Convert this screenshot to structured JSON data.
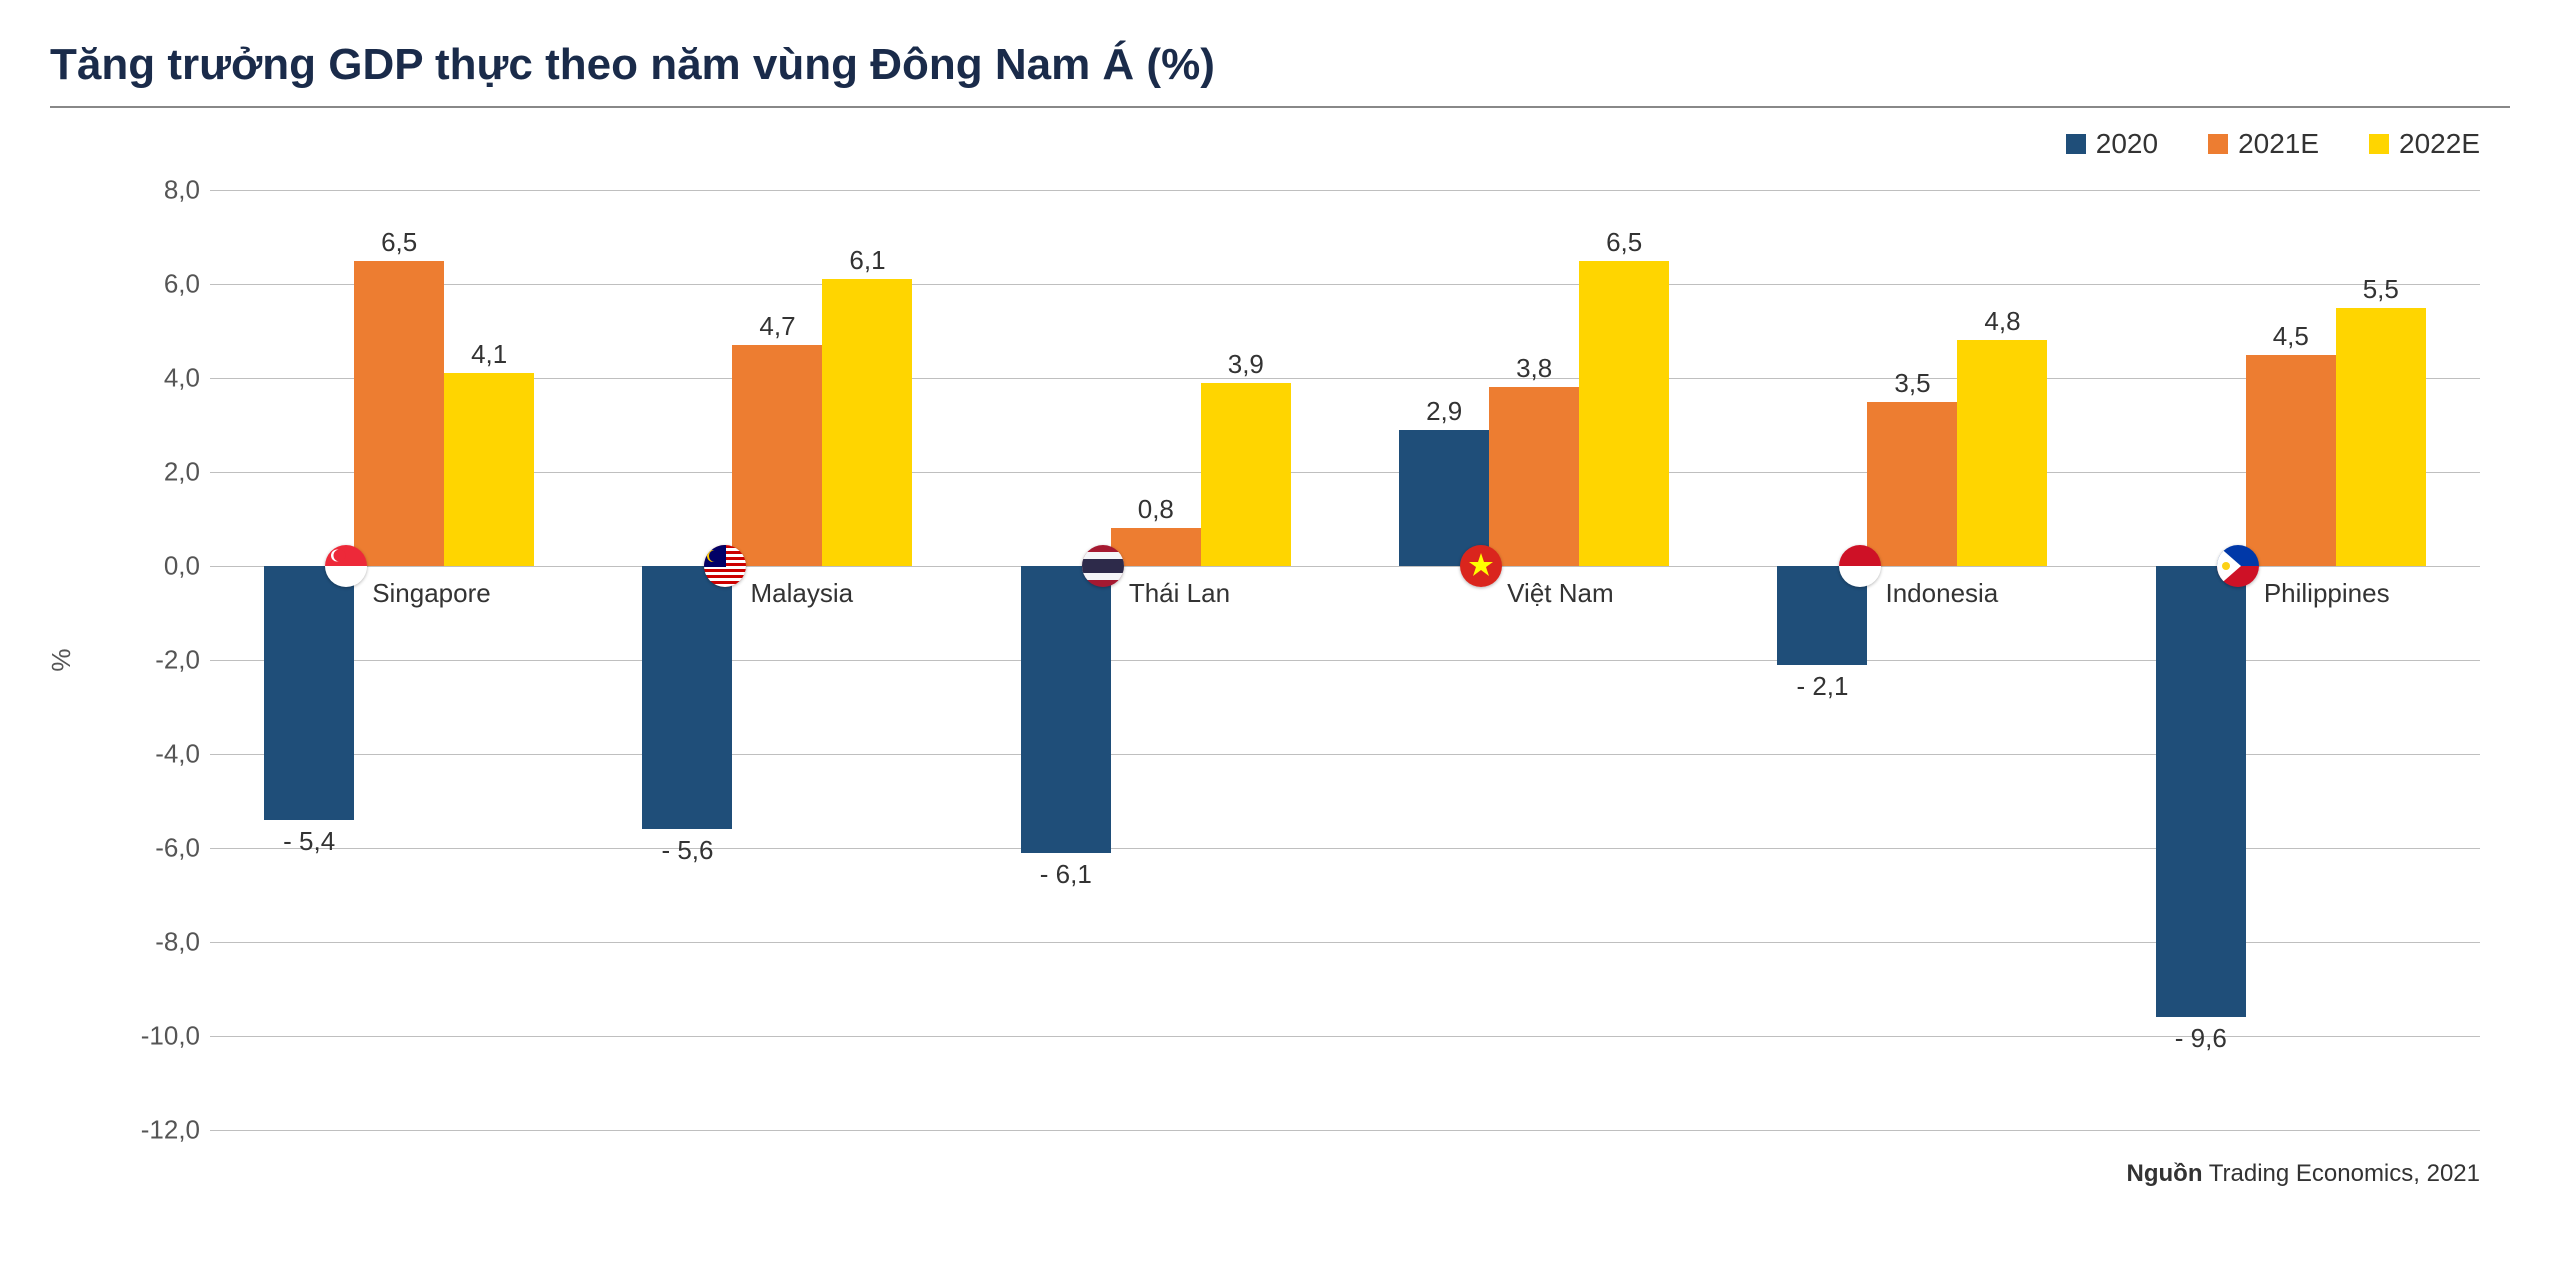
{
  "title": "Tăng trưởng GDP thực theo năm vùng Đông Nam Á (%)",
  "y_axis_label": "%",
  "source_label": "Nguồn",
  "source_text": " Trading Economics, 2021",
  "chart": {
    "type": "bar",
    "ylim": [
      -12,
      8
    ],
    "ytick_step": 2,
    "yticks": [
      "8,0",
      "6,0",
      "4,0",
      "2,0",
      "0,0",
      "-2,0",
      "-4,0",
      "-6,0",
      "-8,0",
      "-10,0",
      "-12,0"
    ],
    "ytick_values": [
      8,
      6,
      4,
      2,
      0,
      -2,
      -4,
      -6,
      -8,
      -10,
      -12
    ],
    "grid_color": "#bfbfbf",
    "background_color": "#ffffff",
    "title_fontsize": 44,
    "label_fontsize": 26,
    "bar_gap": 0,
    "series": [
      {
        "name": "2020",
        "color": "#1f4e79"
      },
      {
        "name": "2021E",
        "color": "#ed7d31"
      },
      {
        "name": "2022E",
        "color": "#ffd500"
      }
    ],
    "categories": [
      {
        "label": "Singapore",
        "flag": "sg",
        "values": [
          -5.4,
          6.5,
          4.1
        ],
        "value_labels": [
          "- 5,4",
          "6,5",
          "4,1"
        ]
      },
      {
        "label": "Malaysia",
        "flag": "my",
        "values": [
          -5.6,
          4.7,
          6.1
        ],
        "value_labels": [
          "- 5,6",
          "4,7",
          "6,1"
        ]
      },
      {
        "label": "Thái Lan",
        "flag": "th",
        "values": [
          -6.1,
          0.8,
          3.9
        ],
        "value_labels": [
          "- 6,1",
          "0,8",
          "3,9"
        ]
      },
      {
        "label": "Việt Nam",
        "flag": "vn",
        "values": [
          2.9,
          3.8,
          6.5
        ],
        "value_labels": [
          "2,9",
          "3,8",
          "6,5"
        ]
      },
      {
        "label": "Indonesia",
        "flag": "id",
        "values": [
          -2.1,
          3.5,
          4.8
        ],
        "value_labels": [
          "- 2,1",
          "3,5",
          "4,8"
        ]
      },
      {
        "label": "Philippines",
        "flag": "ph",
        "values": [
          -9.6,
          4.5,
          5.5
        ],
        "value_labels": [
          "- 9,6",
          "4,5",
          "5,5"
        ]
      }
    ]
  }
}
